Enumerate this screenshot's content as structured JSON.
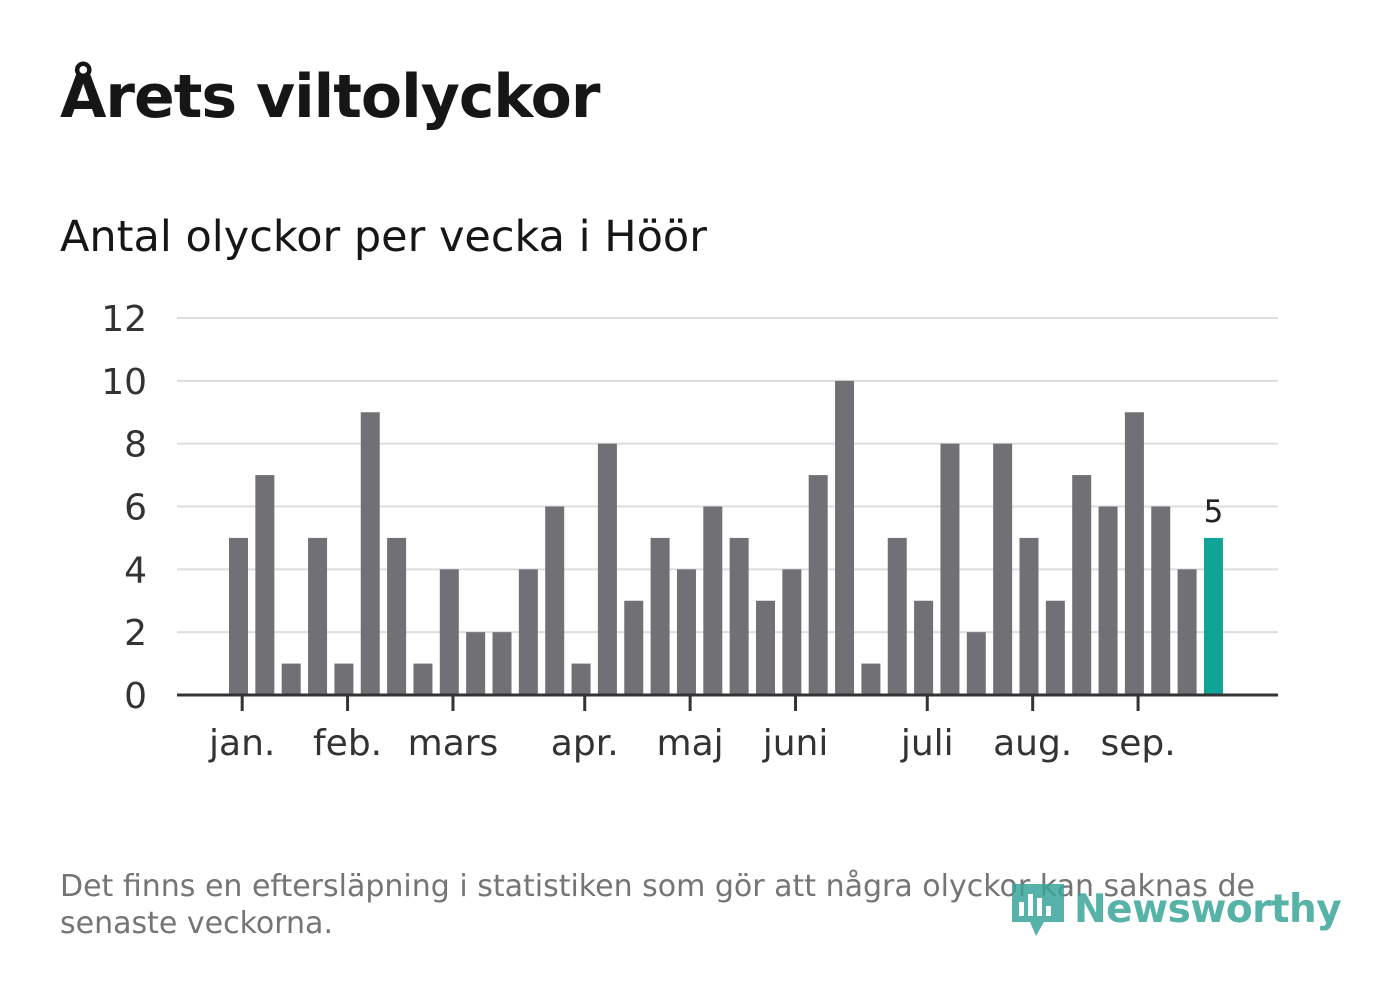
{
  "title": "Årets viltolyckor",
  "subtitle": "Antal olyckor per vecka i Höör",
  "footnote": "Det finns en eftersläpning i statistiken som gör att några olyckor kan saknas de senaste veckorna.",
  "logo": {
    "text": "Newsworthy",
    "icon": "newsworthy-bars-icon"
  },
  "colors": {
    "bar": "#717075",
    "highlight": "#10a497",
    "grid": "#dddddd",
    "axis": "#333333"
  },
  "chart_data": {
    "type": "bar",
    "title": "Antal olyckor per vecka i Höör",
    "xlabel": "",
    "ylabel": "",
    "ylim": [
      0,
      12
    ],
    "yticks": [
      0,
      2,
      4,
      6,
      8,
      10,
      12
    ],
    "grid": true,
    "values": [
      5,
      7,
      1,
      5,
      1,
      9,
      5,
      1,
      4,
      2,
      2,
      4,
      6,
      1,
      8,
      3,
      5,
      4,
      6,
      5,
      3,
      4,
      7,
      10,
      1,
      5,
      3,
      8,
      2,
      8,
      5,
      3,
      7,
      6,
      9,
      6,
      4,
      5
    ],
    "highlight_index": 37,
    "highlight_label": "5",
    "month_ticks": [
      {
        "label": "jan.",
        "week_index": 0.5
      },
      {
        "label": "feb.",
        "week_index": 4.5
      },
      {
        "label": "mars",
        "week_index": 8.5
      },
      {
        "label": "apr.",
        "week_index": 13.5
      },
      {
        "label": "maj",
        "week_index": 17.5
      },
      {
        "label": "juni",
        "week_index": 21.5
      },
      {
        "label": "juli",
        "week_index": 26.5
      },
      {
        "label": "aug.",
        "week_index": 30.5
      },
      {
        "label": "sep.",
        "week_index": 34.5
      }
    ]
  }
}
